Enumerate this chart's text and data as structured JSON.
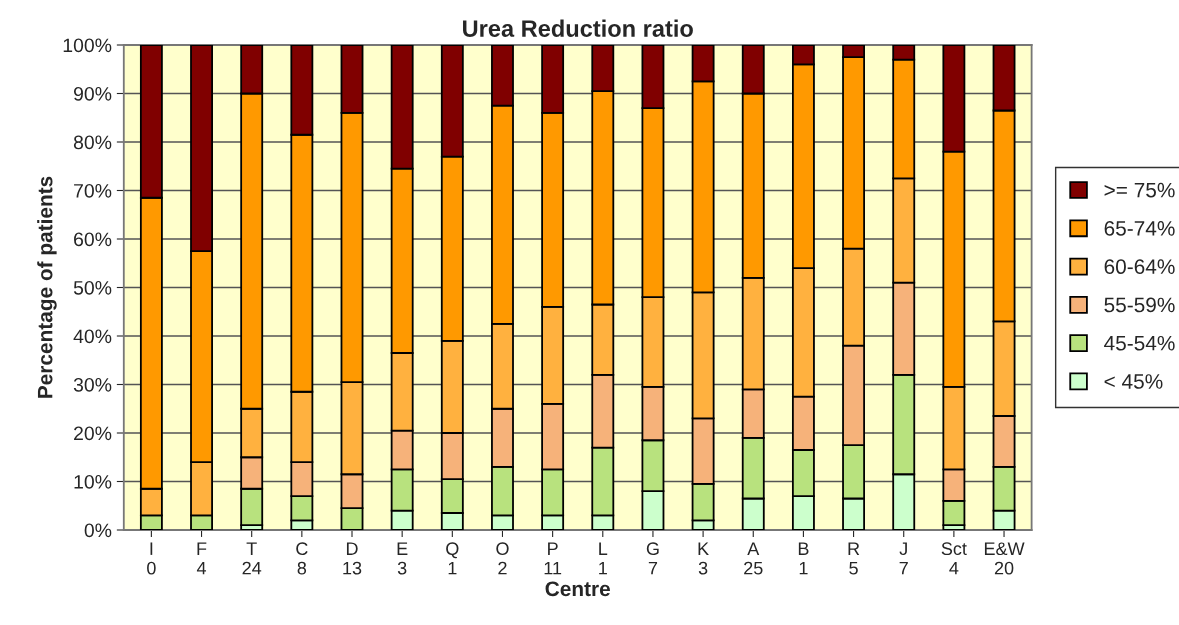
{
  "chart_data": {
    "type": "bar",
    "stacked": true,
    "title": "Urea Reduction ratio",
    "xlabel": "Centre",
    "ylabel": "Percentage of patients",
    "categories": [
      "I\n0",
      "F\n4",
      "T\n24",
      "C\n8",
      "D\n13",
      "E\n3",
      "Q\n1",
      "O\n2",
      "P\n11",
      "L\n1",
      "G\n7",
      "K\n3",
      "A\n25",
      "B\n1",
      "R\n5",
      "J\n7",
      "Sct\n4",
      "E&W\n20"
    ],
    "series": [
      {
        "name": "< 45%",
        "color": "#ccffcc",
        "values": [
          0,
          0,
          1,
          2,
          0,
          4,
          3.5,
          3,
          3,
          3,
          8,
          2,
          6.5,
          7,
          6.5,
          11.5,
          1,
          4
        ]
      },
      {
        "name": "45-54%",
        "color": "#b8e27e",
        "values": [
          3,
          3,
          7.5,
          5,
          4.5,
          8.5,
          7,
          10,
          9.5,
          14,
          10.5,
          7.5,
          12.5,
          9.5,
          11,
          20.5,
          5,
          9
        ]
      },
      {
        "name": "55-59%",
        "color": "#f6b27a",
        "values": [
          0,
          0,
          6.5,
          7,
          7,
          8,
          9.5,
          12,
          13.5,
          15,
          11,
          13.5,
          10,
          11,
          20.5,
          19,
          6.5,
          10.5
        ]
      },
      {
        "name": "60-64%",
        "color": "#ffb13f",
        "values": [
          5.5,
          11,
          10,
          14.5,
          19,
          16,
          19,
          17.5,
          20,
          14.5,
          18.5,
          26,
          23,
          26.5,
          20,
          21.5,
          17,
          19.5
        ]
      },
      {
        "name": "65-74%",
        "color": "#ff9900",
        "values": [
          60,
          43.5,
          65,
          53,
          55.5,
          38,
          38,
          45,
          40,
          44,
          39,
          43.5,
          38,
          42,
          39.5,
          24.5,
          48.5,
          43.5
        ]
      },
      {
        "name": ">= 75%",
        "color": "#800000",
        "values": [
          31.5,
          42.5,
          10,
          18.5,
          14,
          25.5,
          23,
          12.5,
          14,
          9.5,
          13,
          7.5,
          10,
          4,
          2.5,
          3,
          22,
          13.5
        ]
      }
    ],
    "ylim": [
      0,
      100
    ],
    "yticks": [
      {
        "value": 0,
        "label": "0%"
      },
      {
        "value": 10,
        "label": "10%"
      },
      {
        "value": 20,
        "label": "20%"
      },
      {
        "value": 30,
        "label": "30%"
      },
      {
        "value": 40,
        "label": "40%"
      },
      {
        "value": 50,
        "label": "50%"
      },
      {
        "value": 60,
        "label": "60%"
      },
      {
        "value": 70,
        "label": "70%"
      },
      {
        "value": 80,
        "label": "80%"
      },
      {
        "value": 90,
        "label": "90%"
      },
      {
        "value": 100,
        "label": "100%"
      }
    ],
    "grid": "y",
    "legend": "right"
  }
}
